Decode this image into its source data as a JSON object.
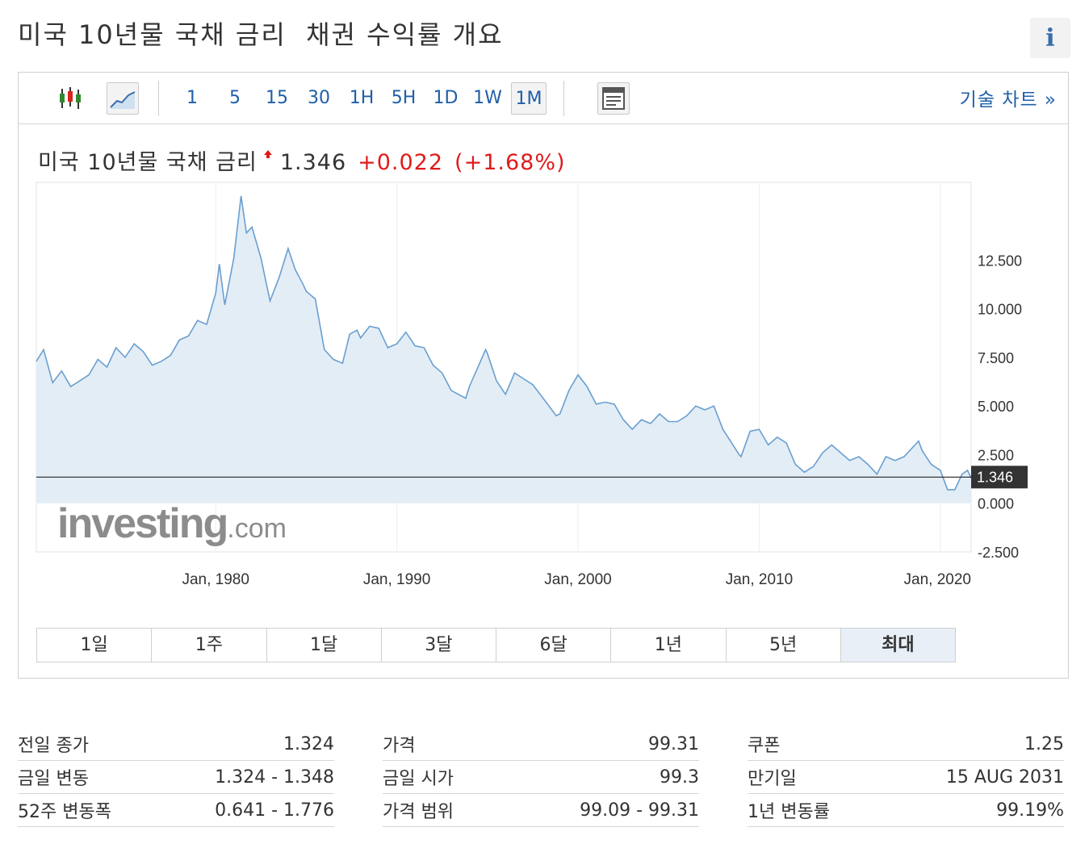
{
  "page_title": "미국 10년물 국채 금리  채권 수익률 개요",
  "info_icon": "i",
  "toolbar": {
    "intervals": [
      "1",
      "5",
      "15",
      "30",
      "1H",
      "5H",
      "1D",
      "1W",
      "1M"
    ],
    "active_interval": "1M",
    "tech_chart_link": "기술 차트 »"
  },
  "quote": {
    "name": "미국 10년물 국채 금리",
    "price": "1.346",
    "change": "+0.022",
    "change_pct": "(+1.68%)",
    "up_color": "#e01b1b"
  },
  "chart_data": {
    "type": "area",
    "y_ticks": [
      "12.500",
      "10.000",
      "7.500",
      "5.000",
      "2.500",
      "0.000",
      "-2.500"
    ],
    "x_ticks": [
      "Jan, 1980",
      "Jan, 1990",
      "Jan, 2000",
      "Jan, 2010",
      "Jan, 2020"
    ],
    "ylim": [
      -2.5,
      16.5
    ],
    "xlim": [
      1970.1,
      2021.7
    ],
    "current_value": 1.346,
    "current_label": "1.346",
    "watermark": "investing.com",
    "line_color": "#6a9fd0",
    "fill_color": "#e3edf6",
    "x": [
      1970.1,
      1970.5,
      1971,
      1971.5,
      1972,
      1972.5,
      1973,
      1973.5,
      1974,
      1974.5,
      1975,
      1975.5,
      1976,
      1976.5,
      1977,
      1977.5,
      1978,
      1978.5,
      1979,
      1979.5,
      1980,
      1980.2,
      1980.5,
      1981,
      1981.4,
      1981.7,
      1982,
      1982.5,
      1983,
      1983.5,
      1984,
      1984.4,
      1984.8,
      1985,
      1985.5,
      1986,
      1986.5,
      1987,
      1987.4,
      1987.8,
      1988,
      1988.5,
      1989,
      1989.5,
      1990,
      1990.5,
      1991,
      1991.5,
      1992,
      1992.5,
      1993,
      1993.8,
      1994,
      1994.9,
      1995,
      1995.5,
      1996,
      1996.5,
      1997,
      1997.5,
      1998,
      1998.8,
      1999,
      1999.5,
      2000,
      2000.5,
      2001,
      2001.5,
      2002,
      2002.5,
      2003,
      2003.5,
      2004,
      2004.5,
      2005,
      2005.5,
      2006,
      2006.5,
      2007,
      2007.5,
      2008,
      2008.9,
      2009,
      2009.5,
      2010,
      2010.5,
      2011,
      2011.5,
      2012,
      2012.5,
      2013,
      2013.5,
      2014,
      2014.5,
      2015,
      2015.5,
      2016,
      2016.5,
      2017,
      2017.5,
      2018,
      2018.8,
      2019,
      2019.5,
      2020,
      2020.4,
      2020.8,
      2021,
      2021.2,
      2021.5,
      2021.7
    ],
    "y": [
      7.3,
      7.9,
      6.2,
      6.8,
      6.0,
      6.3,
      6.6,
      7.4,
      7.0,
      8.0,
      7.5,
      8.2,
      7.8,
      7.1,
      7.3,
      7.6,
      8.4,
      8.6,
      9.4,
      9.2,
      10.8,
      12.3,
      10.2,
      12.6,
      15.8,
      13.9,
      14.2,
      12.6,
      10.4,
      11.6,
      13.1,
      12.0,
      11.3,
      10.9,
      10.5,
      7.9,
      7.4,
      7.2,
      8.7,
      8.9,
      8.5,
      9.1,
      9.0,
      8.0,
      8.2,
      8.8,
      8.1,
      8.0,
      7.1,
      6.7,
      5.8,
      5.4,
      6.0,
      7.9,
      7.7,
      6.3,
      5.6,
      6.7,
      6.4,
      6.1,
      5.5,
      4.5,
      4.6,
      5.8,
      6.6,
      6.0,
      5.1,
      5.2,
      5.1,
      4.3,
      3.8,
      4.3,
      4.1,
      4.6,
      4.2,
      4.2,
      4.5,
      5.0,
      4.8,
      5.0,
      3.8,
      2.5,
      2.4,
      3.7,
      3.8,
      3.0,
      3.4,
      3.1,
      2.0,
      1.6,
      1.9,
      2.6,
      3.0,
      2.6,
      2.2,
      2.4,
      2.0,
      1.5,
      2.4,
      2.2,
      2.4,
      3.2,
      2.7,
      2.0,
      1.7,
      0.7,
      0.7,
      1.1,
      1.5,
      1.7,
      1.3
    ]
  },
  "ranges": [
    "1일",
    "1주",
    "1달",
    "3달",
    "6달",
    "1년",
    "5년",
    "최대"
  ],
  "active_range": "최대",
  "stats": {
    "col1": [
      {
        "label": "전일 종가",
        "value": "1.324"
      },
      {
        "label": "금일 변동",
        "value": "1.324 - 1.348"
      },
      {
        "label": "52주 변동폭",
        "value": "0.641 - 1.776"
      }
    ],
    "col2": [
      {
        "label": "가격",
        "value": "99.31"
      },
      {
        "label": "금일 시가",
        "value": "99.3"
      },
      {
        "label": "가격 범위",
        "value": "99.09 - 99.31"
      }
    ],
    "col3": [
      {
        "label": "쿠폰",
        "value": "1.25"
      },
      {
        "label": "만기일",
        "value": "15 AUG 2031"
      },
      {
        "label": "1년 변동률",
        "value": "99.19%"
      }
    ]
  }
}
